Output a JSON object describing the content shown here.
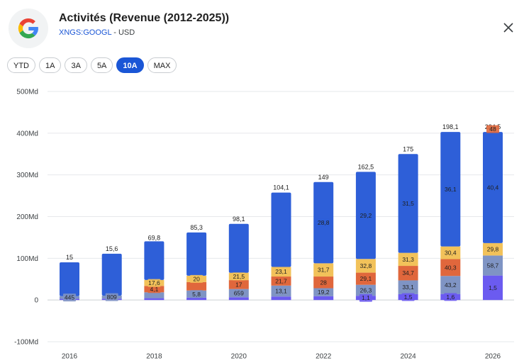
{
  "header": {
    "title": "Activités (Revenue (2012-2025))",
    "ticker": "XNGS:GOOGL",
    "separator": " - ",
    "currency": "USD"
  },
  "tabs": [
    {
      "label": "YTD",
      "active": false
    },
    {
      "label": "1A",
      "active": false
    },
    {
      "label": "3A",
      "active": false
    },
    {
      "label": "5A",
      "active": false
    },
    {
      "label": "10A",
      "active": true
    },
    {
      "label": "MAX",
      "active": false
    }
  ],
  "colors": {
    "accent": "#1a56d6",
    "series": [
      "#6b5bf0",
      "#7f94c4",
      "#e0673c",
      "#f2c25a",
      "#2e5fd8"
    ]
  },
  "icons": {
    "logo": "google-logo-icon",
    "close": "close-icon"
  },
  "chart_data": {
    "type": "bar",
    "stacked": true,
    "x_tick_labels": [
      "2016",
      "2018",
      "2020",
      "2022",
      "2024",
      "2026"
    ],
    "y_tick_labels": [
      "500Md",
      "400Md",
      "300Md",
      "200Md",
      "100Md",
      "0",
      "-100Md"
    ],
    "ylim": [
      -100,
      500
    ],
    "x_range": [
      2015,
      2026
    ],
    "grid": true,
    "legend": "none",
    "bars": [
      {
        "x": 2016,
        "total": 90.3,
        "total_label": "15",
        "segments": [
          {
            "v": 3
          },
          {
            "v": 6.2
          },
          {
            "v": 0
          },
          {
            "v": 0
          },
          {
            "v": 0
          }
        ],
        "segment_labels": [
          {
            "i": 1,
            "t": "445"
          }
        ]
      },
      {
        "x": 2017,
        "total": 110.9,
        "total_label": "15,6",
        "segments": [
          {
            "v": 3.3
          },
          {
            "v": 7.2
          },
          {
            "v": 0
          },
          {
            "v": 0
          },
          {
            "v": 0
          }
        ],
        "segment_labels": [
          {
            "i": 1,
            "t": "809"
          }
        ]
      },
      {
        "x": 2018,
        "total": 136.8,
        "total_label": "69,8",
        "segments": [
          {
            "v": 4.4
          },
          {
            "v": 14.1
          },
          {
            "v": 15.3
          },
          {
            "v": 14.3
          },
          {
            "v": 92.6
          }
        ],
        "segment_labels": [
          {
            "i": 2,
            "t": "4,1"
          },
          {
            "i": 3,
            "t": "17,6"
          }
        ]
      },
      {
        "x": 2019,
        "total": 161.9,
        "total_label": "85,3",
        "segments": [
          {
            "v": 5.8
          },
          {
            "v": 17
          },
          {
            "v": 20.3
          },
          {
            "v": 15.1
          },
          {
            "v": 103.7
          }
        ],
        "segment_labels": [
          {
            "i": 1,
            "t": "5,8"
          },
          {
            "i": 3,
            "t": "20"
          }
        ]
      },
      {
        "x": 2020,
        "total": 182.5,
        "total_label": "98,1",
        "segments": [
          {
            "v": 6.6
          },
          {
            "v": 19.8
          },
          {
            "v": 21.3
          },
          {
            "v": 17.7
          },
          {
            "v": 117.1
          }
        ],
        "segment_labels": [
          {
            "i": 1,
            "t": "659"
          },
          {
            "i": 2,
            "t": "17"
          },
          {
            "i": 3,
            "t": "21,5"
          }
        ]
      },
      {
        "x": 2021,
        "total": 257.6,
        "total_label": "104,1",
        "segments": [
          {
            "v": 8.4
          },
          {
            "v": 26.2
          },
          {
            "v": 21.7
          },
          {
            "v": 23.1
          },
          {
            "v": 178.2
          }
        ],
        "segment_labels": [
          {
            "i": 1,
            "t": "13,1"
          },
          {
            "i": 2,
            "t": "21,7"
          },
          {
            "i": 3,
            "t": "23,1"
          }
        ]
      },
      {
        "x": 2022,
        "total": 282.8,
        "total_label": "149",
        "segments": [
          {
            "v": 9.1
          },
          {
            "v": 19.2
          },
          {
            "v": 28
          },
          {
            "v": 31.7
          },
          {
            "v": 194.8
          }
        ],
        "segment_labels": [
          {
            "i": 1,
            "t": "19,2"
          },
          {
            "i": 2,
            "t": "28"
          },
          {
            "i": 3,
            "t": "31,7"
          },
          {
            "i": 4,
            "t": "28,8"
          }
        ]
      },
      {
        "x": 2023,
        "total": 307.4,
        "total_label": "162,5",
        "segments": [
          {
            "v": 10.2
          },
          {
            "v": 26.3
          },
          {
            "v": 29.1
          },
          {
            "v": 32.8
          },
          {
            "v": 209
          }
        ],
        "segment_labels": [
          {
            "i": 0,
            "t": "1,1"
          },
          {
            "i": 1,
            "t": "26,3"
          },
          {
            "i": 2,
            "t": "29,1"
          },
          {
            "i": 3,
            "t": "32,8"
          },
          {
            "i": 4,
            "t": "29,2"
          }
        ]
      },
      {
        "x": 2024,
        "total": 350,
        "total_label": "175",
        "segments": [
          {
            "v": 14
          },
          {
            "v": 33.1
          },
          {
            "v": 34.7
          },
          {
            "v": 31.3
          },
          {
            "v": 236.9
          }
        ],
        "segment_labels": [
          {
            "i": 0,
            "t": "1,5"
          },
          {
            "i": 1,
            "t": "33,1"
          },
          {
            "i": 2,
            "t": "34,7"
          },
          {
            "i": 3,
            "t": "31,3"
          },
          {
            "i": 4,
            "t": "31,5"
          }
        ]
      },
      {
        "x": 2025,
        "total": 402.8,
        "total_label": "198,1",
        "segments": [
          {
            "v": 14.5
          },
          {
            "v": 43.2
          },
          {
            "v": 40.3
          },
          {
            "v": 30.4
          },
          {
            "v": 274.4
          }
        ],
        "segment_labels": [
          {
            "i": 0,
            "t": "1,6"
          },
          {
            "i": 1,
            "t": "43,2"
          },
          {
            "i": 2,
            "t": "40,3"
          },
          {
            "i": 3,
            "t": "30,4"
          },
          {
            "i": 4,
            "t": "36,1"
          }
        ]
      },
      {
        "x": 2026,
        "total": 402.8,
        "total_label": "224,5",
        "segments": [
          {
            "v": 58.7
          },
          {
            "v": 48
          },
          {
            "v": 0
          },
          {
            "v": 29.8
          },
          {
            "v": 266.3
          }
        ],
        "segment_labels": [
          {
            "i": 0,
            "t": "1,5"
          },
          {
            "i": 1,
            "t": "58,7"
          },
          {
            "i": 2,
            "t": "48"
          },
          {
            "i": 3,
            "t": "29,8"
          },
          {
            "i": 4,
            "t": "40,4"
          }
        ]
      }
    ]
  }
}
